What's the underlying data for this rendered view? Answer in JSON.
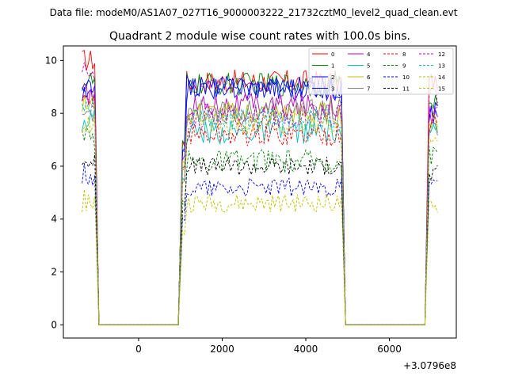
{
  "chart_data": {
    "type": "line",
    "suptitle": "Data file: modeM0/AS1A07_027T16_9000003222_21732cztM0_level2_quad_clean.evt",
    "title": "Quadrant 2 module wise count rates with 100.0s bins.",
    "xlabel": "",
    "ylabel": "",
    "x_offset_label": "+3.0796e8",
    "xlim": [
      -1800,
      7600
    ],
    "ylim": [
      -0.5,
      10.55
    ],
    "x_ticks": [
      0,
      2000,
      4000,
      6000
    ],
    "y_ticks": [
      0,
      2,
      4,
      6,
      8,
      10
    ],
    "legend_position": "top-right",
    "segments": [
      {
        "x_start": -1350,
        "x_end": -1050
      },
      {
        "x_start": 1050,
        "x_end": 4850
      },
      {
        "x_start": 6950,
        "x_end": 7150
      }
    ],
    "zero_x": [
      -950,
      950,
      4950,
      6850
    ],
    "series": [
      {
        "name": "0",
        "color": "#ff0000",
        "dashed": false,
        "level": 9.2,
        "edge": 10.0
      },
      {
        "name": "1",
        "color": "#008000",
        "dashed": false,
        "level": 9.1,
        "edge": 9.2
      },
      {
        "name": "2",
        "color": "#0000ff",
        "dashed": false,
        "level": 9.0,
        "edge": 8.6
      },
      {
        "name": "3",
        "color": "#0000ff",
        "dashed": false,
        "level": 8.9,
        "edge": 8.9
      },
      {
        "name": "4",
        "color": "#bf00bf",
        "dashed": false,
        "level": 8.3,
        "edge": 8.7
      },
      {
        "name": "5",
        "color": "#00bfbf",
        "dashed": false,
        "level": 7.3,
        "edge": 7.8
      },
      {
        "name": "6",
        "color": "#bfbf00",
        "dashed": false,
        "level": 8.0,
        "edge": 8.3
      },
      {
        "name": "7",
        "color": "#808080",
        "dashed": false,
        "level": 8.1,
        "edge": 8.0
      },
      {
        "name": "8",
        "color": "#ff0000",
        "dashed": true,
        "level": 7.2,
        "edge": 8.3
      },
      {
        "name": "9",
        "color": "#008000",
        "dashed": true,
        "level": 6.2,
        "edge": 7.0
      },
      {
        "name": "10",
        "color": "#0000ff",
        "dashed": true,
        "level": 5.2,
        "edge": 5.7
      },
      {
        "name": "11",
        "color": "#000000",
        "dashed": true,
        "level": 6.0,
        "edge": 6.2
      },
      {
        "name": "12",
        "color": "#bf00bf",
        "dashed": true,
        "level": 7.9,
        "edge": 9.5
      },
      {
        "name": "13",
        "color": "#00bfbf",
        "dashed": true,
        "level": 7.8,
        "edge": 8.1
      },
      {
        "name": "14",
        "color": "#bfbf00",
        "dashed": true,
        "level": 4.6,
        "edge": 4.7
      },
      {
        "name": "15",
        "color": "#bfbf00",
        "dashed": true,
        "level": 7.6,
        "edge": 7.5
      }
    ]
  }
}
